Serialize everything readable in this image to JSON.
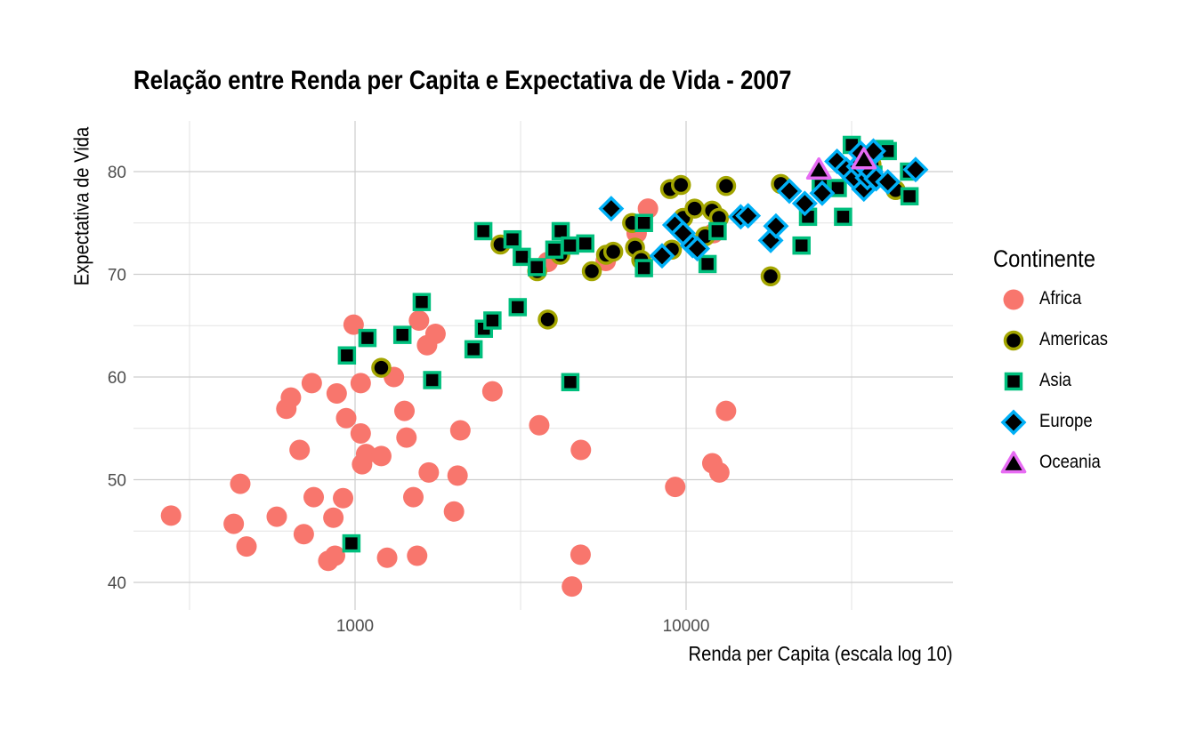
{
  "chart_data": {
    "type": "scatter",
    "title": "Relação entre Renda per Capita e Expectativa de Vida - 2007",
    "xlabel": "Renda per Capita (escala log 10)",
    "ylabel": "Expectativa de Vida",
    "x_scale": "log10",
    "xlim": [
      220,
      62000
    ],
    "ylim": [
      38,
      85
    ],
    "x_ticks": [
      1000,
      10000
    ],
    "x_tick_labels": [
      "1000",
      "10000"
    ],
    "y_ticks": [
      40,
      50,
      60,
      70,
      80
    ],
    "y_tick_labels": [
      "40",
      "50",
      "60",
      "70",
      "80"
    ],
    "grid": true,
    "legend": {
      "title": "Continente",
      "position": "right",
      "entries": [
        "Africa",
        "Americas",
        "Asia",
        "Europe",
        "Oceania"
      ]
    },
    "colors": {
      "Africa": "#F8766D",
      "Americas": "#A3A500",
      "Asia": "#00BF7D",
      "Europe": "#00B0F6",
      "Oceania": "#E76BF3"
    },
    "shapes": {
      "Africa": "circle",
      "Americas": "circle",
      "Asia": "square",
      "Europe": "diamond",
      "Oceania": "triangle"
    },
    "series": [
      {
        "name": "Africa",
        "points": [
          [
            278,
            46.5
          ],
          [
            430,
            45.7
          ],
          [
            450,
            49.6
          ],
          [
            470,
            43.5
          ],
          [
            580,
            46.4
          ],
          [
            620,
            56.9
          ],
          [
            640,
            58.0
          ],
          [
            680,
            52.9
          ],
          [
            700,
            44.7
          ],
          [
            740,
            59.4
          ],
          [
            750,
            48.3
          ],
          [
            830,
            42.1
          ],
          [
            860,
            46.3
          ],
          [
            870,
            42.6
          ],
          [
            880,
            58.4
          ],
          [
            920,
            48.2
          ],
          [
            940,
            56.0
          ],
          [
            990,
            65.1
          ],
          [
            1040,
            59.4
          ],
          [
            1040,
            54.5
          ],
          [
            1050,
            51.5
          ],
          [
            1080,
            52.5
          ],
          [
            1200,
            52.3
          ],
          [
            1250,
            42.4
          ],
          [
            1310,
            60.0
          ],
          [
            1410,
            56.7
          ],
          [
            1430,
            54.1
          ],
          [
            1500,
            48.3
          ],
          [
            1540,
            42.6
          ],
          [
            1560,
            65.5
          ],
          [
            1650,
            63.1
          ],
          [
            1670,
            50.7
          ],
          [
            1750,
            64.2
          ],
          [
            1990,
            46.9
          ],
          [
            2040,
            50.4
          ],
          [
            2080,
            54.8
          ],
          [
            2600,
            58.6
          ],
          [
            3600,
            55.3
          ],
          [
            3820,
            71.2
          ],
          [
            4520,
            39.6
          ],
          [
            4800,
            42.7
          ],
          [
            4810,
            52.9
          ],
          [
            5720,
            71.3
          ],
          [
            7090,
            74.0
          ],
          [
            7670,
            76.4
          ],
          [
            9270,
            49.3
          ],
          [
            12000,
            51.6
          ],
          [
            12100,
            74.0
          ],
          [
            12600,
            50.7
          ],
          [
            13200,
            56.7
          ]
        ]
      },
      {
        "name": "Americas",
        "points": [
          [
            1200,
            60.9
          ],
          [
            2750,
            72.9
          ],
          [
            3550,
            70.3
          ],
          [
            3820,
            65.6
          ],
          [
            4170,
            71.9
          ],
          [
            5190,
            70.3
          ],
          [
            5730,
            71.9
          ],
          [
            6025,
            72.2
          ],
          [
            6870,
            75.0
          ],
          [
            7010,
            72.6
          ],
          [
            7320,
            71.4
          ],
          [
            8950,
            78.3
          ],
          [
            9060,
            72.4
          ],
          [
            9650,
            78.7
          ],
          [
            9800,
            75.5
          ],
          [
            10610,
            76.4
          ],
          [
            11420,
            73.7
          ],
          [
            11980,
            76.2
          ],
          [
            12570,
            75.5
          ],
          [
            13210,
            78.6
          ],
          [
            18000,
            69.8
          ],
          [
            19330,
            78.8
          ],
          [
            36320,
            80.7
          ],
          [
            42950,
            78.2
          ]
        ]
      },
      {
        "name": "Asia",
        "points": [
          [
            975,
            43.8
          ],
          [
            945,
            62.1
          ],
          [
            1090,
            63.8
          ],
          [
            1390,
            64.1
          ],
          [
            1590,
            67.3
          ],
          [
            1710,
            59.7
          ],
          [
            2280,
            62.7
          ],
          [
            2450,
            64.7
          ],
          [
            2440,
            74.2
          ],
          [
            2600,
            65.5
          ],
          [
            2990,
            73.4
          ],
          [
            3100,
            66.8
          ],
          [
            3190,
            71.7
          ],
          [
            3540,
            70.7
          ],
          [
            4000,
            72.4
          ],
          [
            4180,
            74.2
          ],
          [
            4470,
            59.5
          ],
          [
            4460,
            72.8
          ],
          [
            4960,
            73.0
          ],
          [
            7460,
            70.6
          ],
          [
            7460,
            75.0
          ],
          [
            11610,
            71.0
          ],
          [
            12450,
            74.2
          ],
          [
            22320,
            72.8
          ],
          [
            23350,
            75.6
          ],
          [
            25520,
            78.6
          ],
          [
            28720,
            78.4
          ],
          [
            29800,
            75.6
          ],
          [
            31660,
            82.6
          ],
          [
            36800,
            79.7
          ],
          [
            39725,
            82.2
          ],
          [
            40670,
            82.0
          ],
          [
            47140,
            80.0
          ],
          [
            47310,
            77.6
          ]
        ]
      },
      {
        "name": "Europe",
        "points": [
          [
            5940,
            76.4
          ],
          [
            8460,
            71.8
          ],
          [
            9250,
            74.8
          ],
          [
            9790,
            74.0
          ],
          [
            10460,
            72.8
          ],
          [
            10810,
            72.5
          ],
          [
            14620,
            75.6
          ],
          [
            15390,
            75.7
          ],
          [
            18010,
            73.3
          ],
          [
            18680,
            74.7
          ],
          [
            20510,
            78.1
          ],
          [
            22830,
            76.9
          ],
          [
            25770,
            77.9
          ],
          [
            28570,
            81.0
          ],
          [
            30470,
            80.2
          ],
          [
            32170,
            79.4
          ],
          [
            33200,
            80.5
          ],
          [
            33860,
            80.9
          ],
          [
            33690,
            81.8
          ],
          [
            34430,
            78.3
          ],
          [
            35280,
            79.4
          ],
          [
            36130,
            80.0
          ],
          [
            36180,
            81.5
          ],
          [
            36800,
            82.0
          ],
          [
            37500,
            79.3
          ],
          [
            40680,
            79.0
          ],
          [
            49360,
            80.2
          ]
        ]
      },
      {
        "name": "Oceania",
        "points": [
          [
            25180,
            80.2
          ],
          [
            34440,
            81.2
          ]
        ]
      }
    ]
  }
}
